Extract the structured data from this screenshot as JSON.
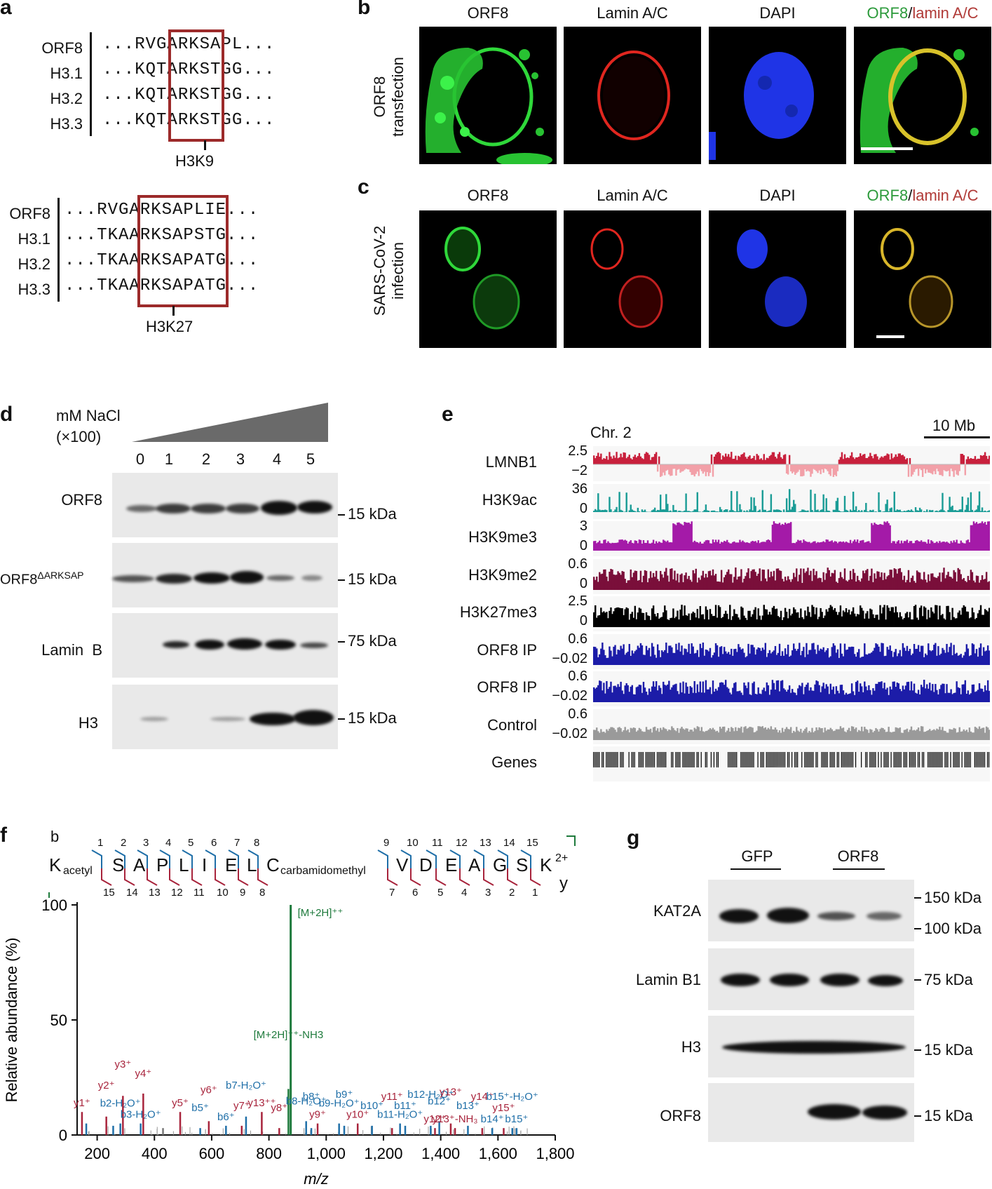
{
  "panels": {
    "a": "a",
    "b": "b",
    "c": "c",
    "d": "d",
    "e": "e",
    "f": "f",
    "g": "g"
  },
  "panel_a": {
    "top": {
      "rows": [
        {
          "name": "ORF8",
          "seq": "...RVGARKSAPL..."
        },
        {
          "name": "H3.1",
          "seq": "...KQTARKSTGG..."
        },
        {
          "name": "H3.2",
          "seq": "...KQTARKSTGG..."
        },
        {
          "name": "H3.3",
          "seq": "...KQTARKSTGG..."
        }
      ],
      "site": "H3K9"
    },
    "bottom": {
      "rows": [
        {
          "name": "ORF8",
          "seq": "...RVGARKSAPLIE..."
        },
        {
          "name": "H3.1",
          "seq": "...TKAARKSAPSTG..."
        },
        {
          "name": "H3.2",
          "seq": "...TKAARKSAPATG..."
        },
        {
          "name": "H3.3",
          "seq": "...TKAARKSAPATG..."
        }
      ],
      "site": "H3K27"
    }
  },
  "panel_b": {
    "row_label_1": "ORF8",
    "row_label_2": "transfection",
    "columns": [
      "ORF8",
      "Lamin A/C",
      "DAPI"
    ],
    "merge_green": "ORF8",
    "merge_sep": "/",
    "merge_red": "lamin A/C"
  },
  "panel_c": {
    "row_label_1": "SARS-CoV-2",
    "row_label_2": "infection",
    "columns": [
      "ORF8",
      "Lamin A/C",
      "DAPI"
    ],
    "merge_green": "ORF8",
    "merge_sep": "/",
    "merge_red": "lamin A/C"
  },
  "panel_d": {
    "salt_label_1": "mM NaCl",
    "salt_label_2": "(×100)",
    "lanes": [
      "0",
      "1",
      "2",
      "3",
      "4",
      "5"
    ],
    "blots": [
      {
        "name": "ORF8",
        "marker": "15 kDa"
      },
      {
        "name": "ORF8",
        "sup": "ΔARKSAP",
        "marker": "15 kDa"
      },
      {
        "name": "Lamin  B",
        "marker": "75 kDa"
      },
      {
        "name": "H3",
        "marker": "15 kDa"
      }
    ]
  },
  "panel_e": {
    "chrom": "Chr. 2",
    "scale": "10 Mb",
    "tracks": [
      {
        "name": "LMNB1",
        "top": "2.5",
        "bottom": "−2",
        "color": "#c8203c"
      },
      {
        "name": "H3K9ac",
        "top": "36",
        "bottom": "0",
        "color": "#1a9c96"
      },
      {
        "name": "H3K9me3",
        "top": "3",
        "bottom": "0",
        "color": "#a41aa8"
      },
      {
        "name": "H3K9me2",
        "top": "0.6",
        "bottom": "0",
        "color": "#7a0f3a"
      },
      {
        "name": "H3K27me3",
        "top": "2.5",
        "bottom": "0",
        "color": "#000000"
      },
      {
        "name": "ORF8 IP",
        "top": "0.6",
        "bottom": "−0.02",
        "color": "#1c1ca8"
      },
      {
        "name": "ORF8 IP",
        "top": "0.6",
        "bottom": "−0.02",
        "color": "#1c1ca8"
      },
      {
        "name": "Control",
        "top": "0.6",
        "bottom": "−0.02",
        "color": "#9a9a9a"
      },
      {
        "name": "Genes",
        "top": "",
        "bottom": "",
        "color": "#000000"
      }
    ]
  },
  "panel_f": {
    "b_label": "b",
    "y_label": "y",
    "peptide": [
      {
        "res": "K",
        "mod": "acetyl"
      },
      {
        "res": "S",
        "mod": ""
      },
      {
        "res": "A",
        "mod": ""
      },
      {
        "res": "P",
        "mod": ""
      },
      {
        "res": "L",
        "mod": ""
      },
      {
        "res": "I",
        "mod": ""
      },
      {
        "res": "E",
        "mod": ""
      },
      {
        "res": "L",
        "mod": ""
      },
      {
        "res": "C",
        "mod": "carbamidomethyl"
      },
      {
        "res": "V",
        "mod": ""
      },
      {
        "res": "D",
        "mod": ""
      },
      {
        "res": "E",
        "mod": ""
      },
      {
        "res": "A",
        "mod": ""
      },
      {
        "res": "G",
        "mod": ""
      },
      {
        "res": "S",
        "mod": ""
      },
      {
        "res": "K",
        "mod": "2+"
      }
    ],
    "b_nums": [
      "1",
      "2",
      "3",
      "4",
      "5",
      "6",
      "7",
      "8",
      "9",
      "10",
      "11",
      "12",
      "13",
      "14",
      "15"
    ],
    "y_nums": [
      "15",
      "14",
      "13",
      "12",
      "11",
      "10",
      "9",
      "8",
      "7",
      "6",
      "5",
      "4",
      "3",
      "2",
      "1"
    ],
    "colors": {
      "b_ion": "#1f6fa8",
      "y_ion": "#a8243c",
      "precursor": "#1e7a3c"
    }
  },
  "chart_data": {
    "type": "bar",
    "title": "",
    "xlabel": "m/z",
    "ylabel": "Relative abundance (%)",
    "xlim": [
      130,
      1800
    ],
    "ylim": [
      0,
      100
    ],
    "xticks": [
      "200",
      "400",
      "600",
      "800",
      "1,000",
      "1,200",
      "1,400",
      "1,600",
      "1,800"
    ],
    "yticks": [
      "0",
      "50",
      "100"
    ],
    "peaks": [
      {
        "mz": 147,
        "i": 10,
        "label": "y1⁺",
        "type": "y"
      },
      {
        "mz": 162,
        "i": 5,
        "label": "",
        "type": "b"
      },
      {
        "mz": 232,
        "i": 8,
        "label": "y2⁺",
        "type": "y"
      },
      {
        "mz": 256,
        "i": 4,
        "label": "",
        "type": "b"
      },
      {
        "mz": 281,
        "i": 5,
        "label": "b2-H₂O⁺",
        "type": "b"
      },
      {
        "mz": 290,
        "i": 17,
        "label": "y3⁺",
        "type": "y"
      },
      {
        "mz": 352,
        "i": 5,
        "label": "b3-H₂O⁺",
        "type": "b"
      },
      {
        "mz": 361,
        "i": 18,
        "label": "y4⁺",
        "type": "y"
      },
      {
        "mz": 430,
        "i": 3,
        "label": "",
        "type": "other"
      },
      {
        "mz": 490,
        "i": 10,
        "label": "y5⁺",
        "type": "y"
      },
      {
        "mz": 560,
        "i": 3,
        "label": "b5⁺",
        "type": "b"
      },
      {
        "mz": 590,
        "i": 6,
        "label": "y6⁺",
        "type": "y"
      },
      {
        "mz": 650,
        "i": 4,
        "label": "b6⁺",
        "type": "b"
      },
      {
        "mz": 705,
        "i": 4,
        "label": "y7⁺",
        "type": "y"
      },
      {
        "mz": 720,
        "i": 8,
        "label": "b7-H₂O⁺",
        "type": "b"
      },
      {
        "mz": 775,
        "i": 10,
        "label": "y13⁺⁺",
        "type": "y"
      },
      {
        "mz": 836,
        "i": 3,
        "label": "y8⁺",
        "type": "y"
      },
      {
        "mz": 868,
        "i": 20,
        "label": "[M+2H]⁺⁺-NH3",
        "type": "precursor"
      },
      {
        "mz": 876,
        "i": 100,
        "label": "[M+2H]⁺⁺",
        "type": "precursor"
      },
      {
        "mz": 930,
        "i": 6,
        "label": "b8-H₂O⁺",
        "type": "b"
      },
      {
        "mz": 948,
        "i": 3,
        "label": "b8⁺",
        "type": "b"
      },
      {
        "mz": 970,
        "i": 5,
        "label": "y9⁺",
        "type": "y"
      },
      {
        "mz": 1045,
        "i": 5,
        "label": "b9-H₂O⁺",
        "type": "b"
      },
      {
        "mz": 1063,
        "i": 4,
        "label": "b9⁺",
        "type": "b"
      },
      {
        "mz": 1110,
        "i": 5,
        "label": "y10⁺",
        "type": "y"
      },
      {
        "mz": 1160,
        "i": 4,
        "label": "b10⁺",
        "type": "b"
      },
      {
        "mz": 1230,
        "i": 3,
        "label": "y11⁺",
        "type": "y"
      },
      {
        "mz": 1258,
        "i": 5,
        "label": "b11-H₂O⁺",
        "type": "b"
      },
      {
        "mz": 1276,
        "i": 4,
        "label": "b11⁺",
        "type": "b"
      },
      {
        "mz": 1365,
        "i": 4,
        "label": "b12-H₂O⁺",
        "type": "b"
      },
      {
        "mz": 1380,
        "i": 3,
        "label": "y12⁺",
        "type": "y"
      },
      {
        "mz": 1395,
        "i": 6,
        "label": "b12⁺",
        "type": "b"
      },
      {
        "mz": 1435,
        "i": 5,
        "label": "y13⁺",
        "type": "y"
      },
      {
        "mz": 1450,
        "i": 3,
        "label": "y13⁺-NH₃",
        "type": "y"
      },
      {
        "mz": 1495,
        "i": 4,
        "label": "b13⁺",
        "type": "b"
      },
      {
        "mz": 1545,
        "i": 3,
        "label": "y14⁺",
        "type": "y"
      },
      {
        "mz": 1580,
        "i": 3,
        "label": "b14⁺",
        "type": "b"
      },
      {
        "mz": 1620,
        "i": 3,
        "label": "y15⁺",
        "type": "y"
      },
      {
        "mz": 1650,
        "i": 3,
        "label": "b15⁺-H₂O⁺",
        "type": "b"
      },
      {
        "mz": 1665,
        "i": 3,
        "label": "b15⁺",
        "type": "b"
      }
    ]
  },
  "panel_g": {
    "groups": [
      "GFP",
      "ORF8"
    ],
    "blots": [
      {
        "name": "KAT2A",
        "markers": [
          "150 kDa",
          "100 kDa"
        ]
      },
      {
        "name": "Lamin B1",
        "markers": [
          "75 kDa"
        ]
      },
      {
        "name": "H3",
        "markers": [
          "15 kDa"
        ]
      },
      {
        "name": "ORF8",
        "markers": [
          "15 kDa"
        ]
      }
    ]
  }
}
